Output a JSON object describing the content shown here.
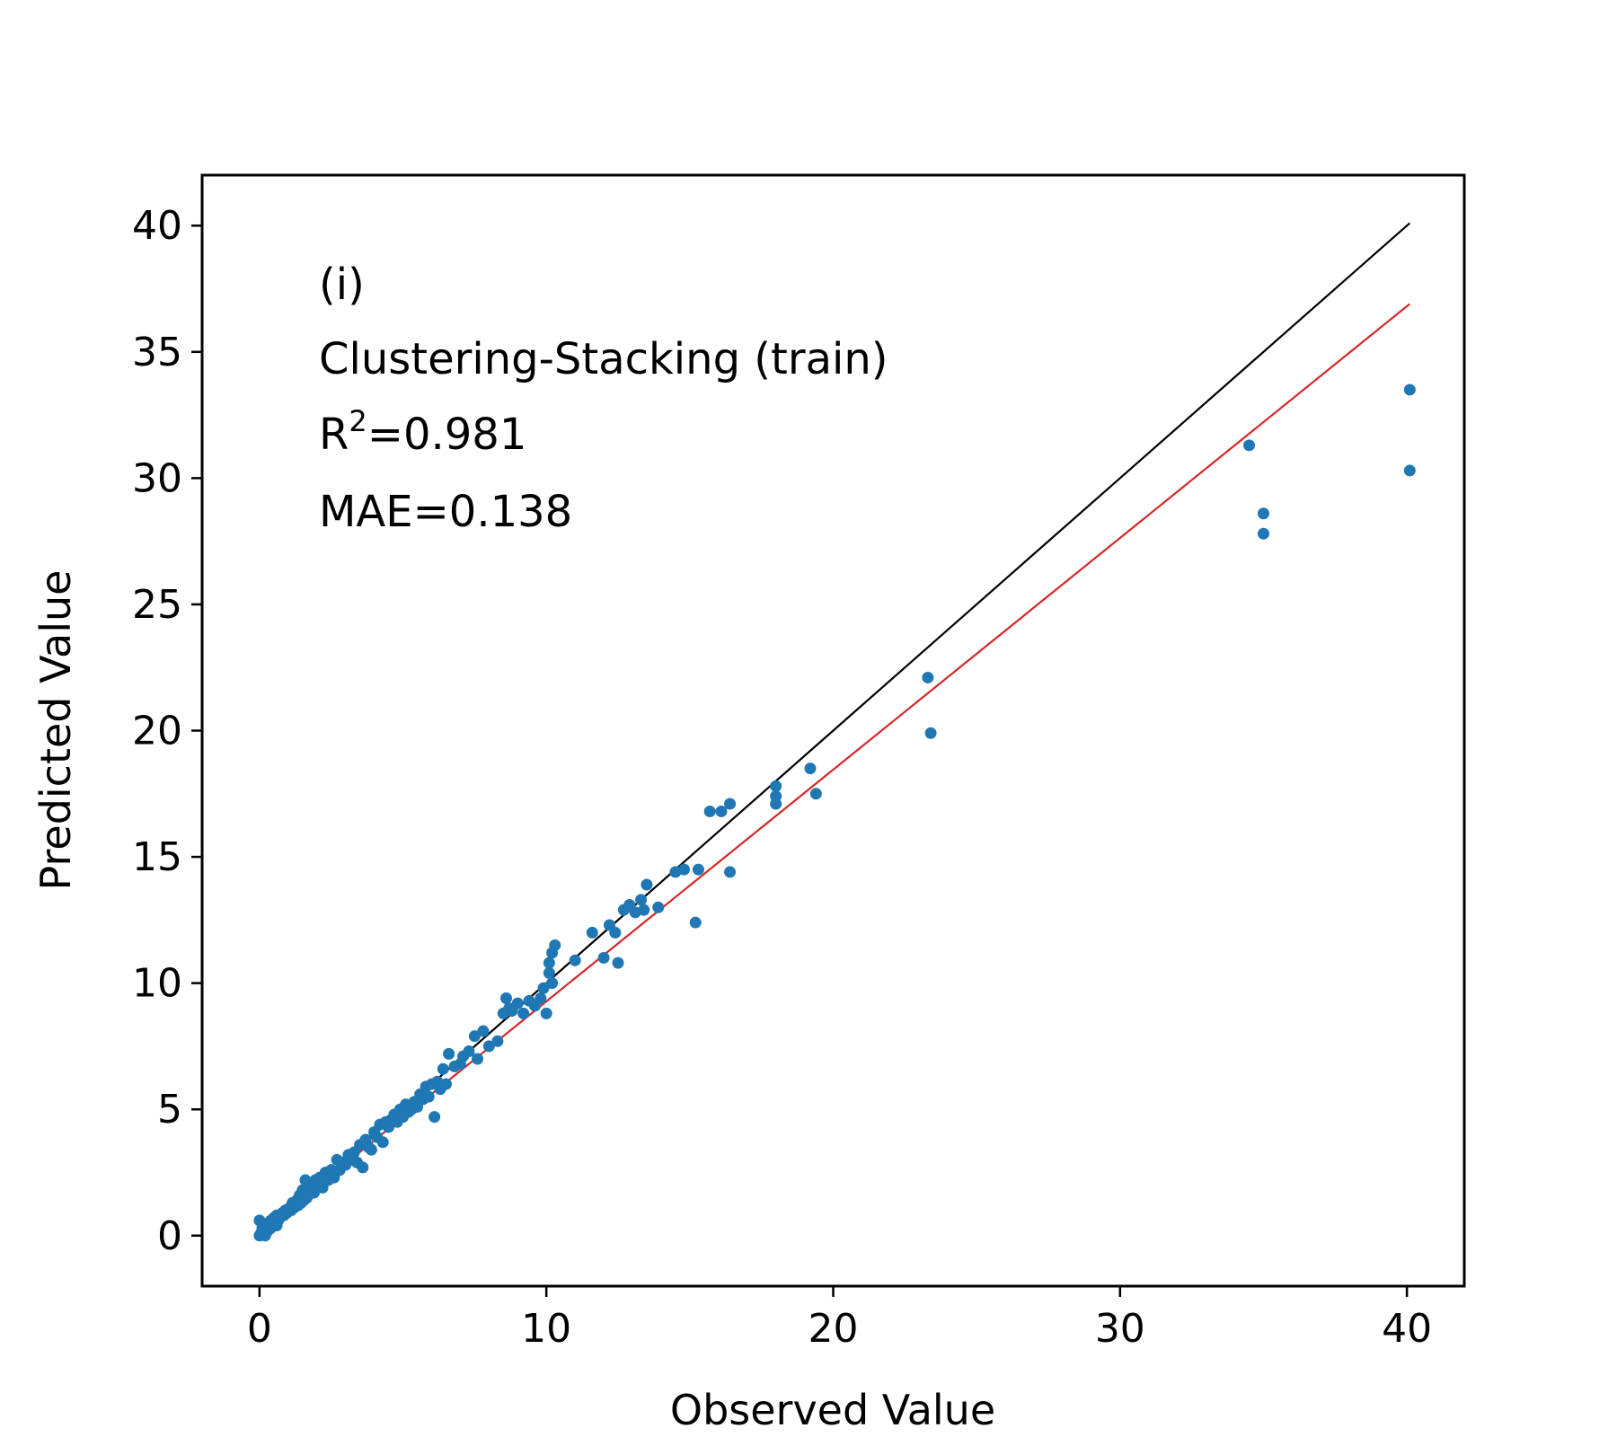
{
  "chart_data": {
    "type": "scatter",
    "title": "",
    "xlabel": "Observed Value",
    "ylabel": "Predicted Value",
    "xlim": [
      -2,
      42
    ],
    "ylim": [
      -2,
      42
    ],
    "xticks": [
      0,
      10,
      20,
      30,
      40
    ],
    "yticks": [
      0,
      5,
      10,
      15,
      20,
      25,
      30,
      35,
      40
    ],
    "grid": false,
    "colors": {
      "points": "#1f77b4",
      "identity_line": "#000000",
      "fit_line": "#d62728"
    },
    "annotations": {
      "panel": "(i)",
      "model": "Clustering-Stacking (train)",
      "r2_prefix": "R",
      "r2_sup": "2",
      "r2_value": "=0.981",
      "mae": "MAE=0.138"
    },
    "lines": [
      {
        "kind": "identity",
        "x": [
          0,
          40.1
        ],
        "y": [
          0,
          40.1
        ]
      },
      {
        "kind": "fit",
        "x": [
          0,
          40.1
        ],
        "y": [
          0.1,
          36.9
        ]
      }
    ],
    "series": [
      {
        "x": [
          0.0,
          0.0,
          0.05,
          0.1,
          0.1,
          0.15,
          0.2,
          0.2,
          0.25,
          0.3,
          0.3,
          0.35,
          0.4,
          0.4,
          0.45,
          0.5,
          0.5,
          0.55,
          0.6,
          0.6,
          0.65,
          0.7,
          0.75,
          0.8,
          0.85,
          0.9,
          0.95,
          1.0,
          1.05,
          1.1,
          1.15,
          1.2,
          1.25,
          1.3,
          1.35,
          1.4,
          1.45,
          1.5,
          1.55,
          1.6,
          1.65,
          1.7,
          1.75,
          1.8,
          1.85,
          1.9,
          1.95,
          2.0,
          2.1,
          2.2,
          2.3,
          2.4,
          2.5,
          2.6,
          2.7,
          2.8,
          2.9,
          3.0,
          3.1,
          3.2,
          3.3,
          3.4,
          3.5,
          3.6,
          3.7,
          3.8,
          3.9,
          4.0,
          4.1,
          4.2,
          4.3,
          4.4,
          4.5,
          4.6,
          4.7,
          4.8,
          4.9,
          5.0,
          5.1,
          5.2,
          5.3,
          5.4,
          5.5,
          5.6,
          5.7,
          5.8,
          5.9,
          6.0,
          6.1,
          6.2,
          6.3,
          6.4,
          6.5,
          6.6,
          6.8,
          7.0,
          7.1,
          7.3,
          7.5,
          7.6,
          7.8,
          8.0,
          8.3,
          8.5,
          8.6,
          8.7,
          8.8,
          9.0,
          9.2,
          9.4,
          9.6,
          9.8,
          9.9,
          10.0,
          10.1,
          10.1,
          10.2,
          10.2,
          10.3,
          11.0,
          11.6,
          12.0,
          12.2,
          12.4,
          12.5,
          12.7,
          12.9,
          13.1,
          13.3,
          13.4,
          13.5,
          13.9,
          14.5,
          14.8,
          15.2,
          15.3,
          15.7,
          16.1,
          16.4,
          16.4,
          18.0,
          18.0,
          18.0,
          19.2,
          19.4,
          23.3,
          23.4,
          34.5,
          35.0,
          35.0,
          40.1,
          40.1
        ],
        "y": [
          0.0,
          0.6,
          0.1,
          0.3,
          0.2,
          0.1,
          0.4,
          0.0,
          0.3,
          0.5,
          0.2,
          0.4,
          0.3,
          0.6,
          0.4,
          0.5,
          0.7,
          0.6,
          0.4,
          0.8,
          0.6,
          0.7,
          0.8,
          0.9,
          0.8,
          1.0,
          0.9,
          1.0,
          1.1,
          1.0,
          1.3,
          1.1,
          1.2,
          1.4,
          1.2,
          1.6,
          1.3,
          1.8,
          1.4,
          2.2,
          1.5,
          1.6,
          2.0,
          1.8,
          1.9,
          1.7,
          2.2,
          2.0,
          2.3,
          1.9,
          2.5,
          2.2,
          2.6,
          2.3,
          3.0,
          2.6,
          2.9,
          2.8,
          3.2,
          3.0,
          3.3,
          2.9,
          3.6,
          2.7,
          3.8,
          3.5,
          3.4,
          4.1,
          3.9,
          4.4,
          3.7,
          4.5,
          4.3,
          4.6,
          4.8,
          4.5,
          5.0,
          4.7,
          5.2,
          4.9,
          5.0,
          5.3,
          5.1,
          5.6,
          5.4,
          5.9,
          5.5,
          6.0,
          4.7,
          6.1,
          5.8,
          6.6,
          6.0,
          7.2,
          6.7,
          6.8,
          7.1,
          7.3,
          7.9,
          7.0,
          8.1,
          7.5,
          7.7,
          8.8,
          9.4,
          9.0,
          8.9,
          9.2,
          8.8,
          9.3,
          9.1,
          9.4,
          9.8,
          8.8,
          10.8,
          10.4,
          11.2,
          10.0,
          11.5,
          10.9,
          12.0,
          11.0,
          12.3,
          12.0,
          10.8,
          12.9,
          13.1,
          12.8,
          13.3,
          12.9,
          13.9,
          13.0,
          14.4,
          14.5,
          12.4,
          14.5,
          16.8,
          16.8,
          17.1,
          14.4,
          17.4,
          17.8,
          17.1,
          18.5,
          17.5,
          22.1,
          19.9,
          31.3,
          28.6,
          27.8,
          33.5,
          30.3
        ]
      }
    ]
  }
}
